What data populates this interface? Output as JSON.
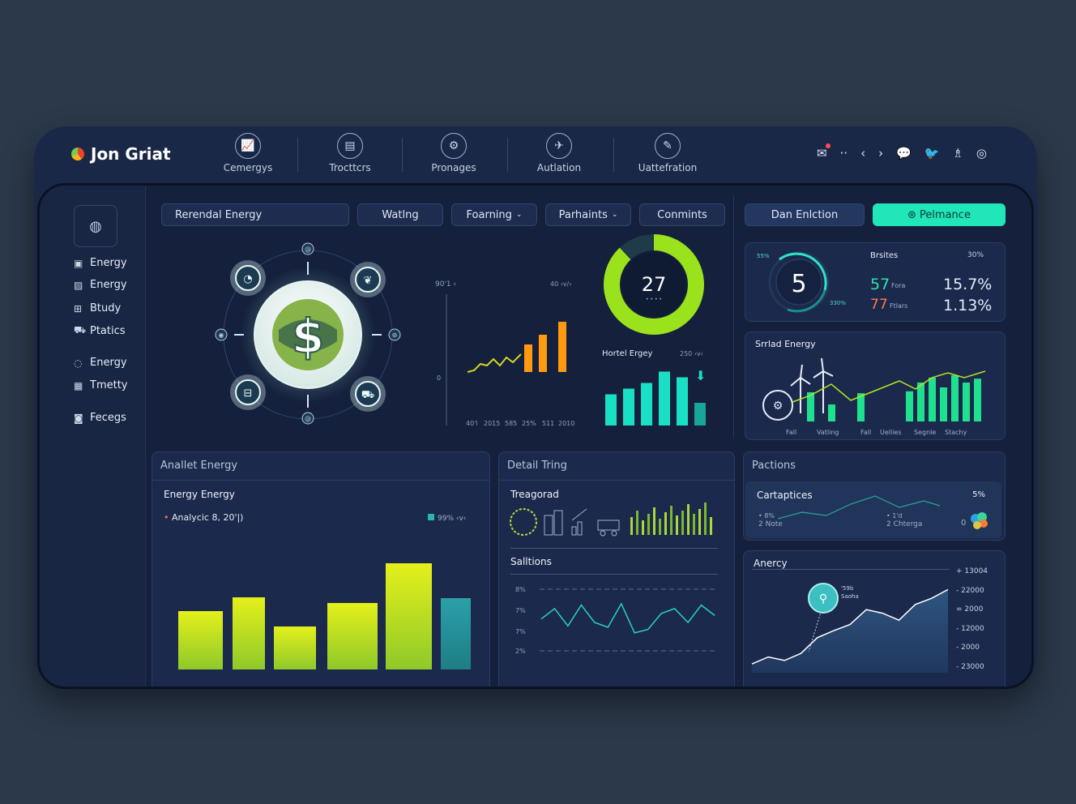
{
  "brand": {
    "name": "Jon Griat"
  },
  "nav": [
    {
      "label": "Cemergys",
      "icon": "chart-icon"
    },
    {
      "label": "Trocttcrs",
      "icon": "document-icon"
    },
    {
      "label": "Pronages",
      "icon": "settings-icon"
    },
    {
      "label": "Autlation",
      "icon": "automation-icon"
    },
    {
      "label": "Uattefration",
      "icon": "tools-icon"
    }
  ],
  "toolbar_icons": [
    "message-icon",
    "more-icon",
    "back-icon",
    "forward-icon",
    "chat-icon",
    "bird-icon",
    "user-icon",
    "settings-icon"
  ],
  "sidebar": {
    "items": [
      {
        "label": "Energy",
        "icon": "folder-icon"
      },
      {
        "label": "Energy",
        "icon": "image-icon"
      },
      {
        "label": "Btudy",
        "icon": "grid-icon"
      },
      {
        "label": "Ptatics",
        "icon": "car-icon"
      },
      {
        "label": "Energy",
        "icon": "chat-icon"
      },
      {
        "label": "Tmetty",
        "icon": "calendar-icon"
      },
      {
        "label": "Fecegs",
        "icon": "settings-icon"
      }
    ]
  },
  "filters": {
    "renewal": "Rerendal Energy",
    "waiting": "Watlng",
    "foarming": "Foarning",
    "parhaints": "Parhaints",
    "comments": "Conmints"
  },
  "tabs": {
    "left": "Dan Enlction",
    "right": "Pelmance"
  },
  "hub": {
    "center_icon": "dollar-icon"
  },
  "line_chart": {
    "top_left": "90'1 ‹",
    "top_right": "40 ‹v/‹",
    "axis_mark": "0",
    "x_labels": [
      "40'l",
      "2015",
      "585",
      "25%",
      "511",
      "2010"
    ]
  },
  "donut": {
    "value": "27",
    "sub": "• • • •",
    "pct": 0.88
  },
  "hotel": {
    "title": "Hortel Ergey",
    "value": "250 ‹v‹",
    "chart_data": {
      "type": "bar",
      "values": [
        55,
        65,
        75,
        95,
        85,
        40
      ]
    }
  },
  "gauge": {
    "value": "5",
    "top_label": "55%",
    "side_label": "330%"
  },
  "stats": {
    "title": "Brsites",
    "title_pct": "30%",
    "row1_num": "57",
    "row1_lbl": "Fora",
    "row1_val": "15.7%",
    "row2_num": "77",
    "row2_lbl": "Ftlars",
    "row2_val": "1.13%"
  },
  "solar": {
    "title": "Srrlad Energy",
    "x_labels": [
      "Fall",
      "Vatling",
      "Fall",
      "Uellies",
      "Segnle",
      "Stachy"
    ],
    "chart_data": {
      "type": "bar",
      "values": [
        60,
        35,
        58,
        62,
        80,
        90,
        70,
        95,
        80,
        88
      ]
    }
  },
  "analytics": {
    "header": "Anallet Energy",
    "sub": "Energy Energy",
    "legend": "Analycic 8, 20'|)",
    "legend2": "99% ‹v‹",
    "chart_data": {
      "type": "bar",
      "values": [
        72,
        89,
        53,
        82,
        131,
        88
      ]
    }
  },
  "detail": {
    "header": "Detail Tring",
    "sub": "Treagorad",
    "solutions": "Salltions",
    "y_labels": [
      "8%",
      "7%",
      "7%",
      "2%"
    ],
    "chart_data": {
      "type": "line",
      "values": [
        40,
        55,
        30,
        60,
        35,
        28,
        62,
        20,
        25,
        48,
        55,
        35,
        60,
        45
      ]
    }
  },
  "positions": {
    "header": "Pactions",
    "card_title": "Cartaptices",
    "card_pct": "5%",
    "card_left1": "• 8%",
    "card_left2": "2 Note",
    "card_mid1": "• 1'd",
    "card_mid2": "2 Chterga",
    "card_right": "0"
  },
  "agency": {
    "title": "Anercy",
    "marker": "'59b",
    "marker2": "Saoha",
    "y_labels": [
      "+ 13004",
      "- 22000",
      "= 2000",
      "- 12000",
      "- 2000",
      "- 23000"
    ],
    "chart_data": {
      "type": "area",
      "values": [
        10,
        18,
        14,
        22,
        40,
        48,
        55,
        72,
        68,
        60,
        78,
        85,
        95
      ]
    }
  },
  "colors": {
    "accent": "#26e6c4",
    "lime": "#c6ea1e",
    "orange": "#ff9a10",
    "teal": "#19d9c6"
  }
}
